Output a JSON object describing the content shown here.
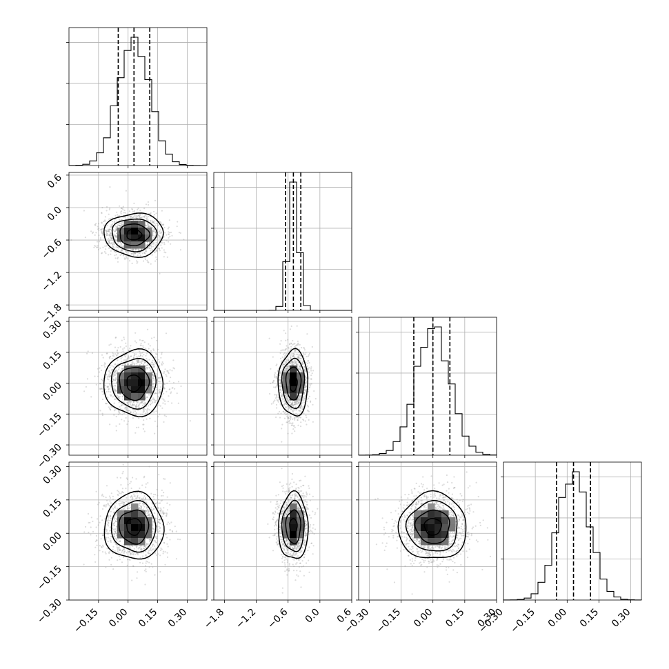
{
  "chart_data": {
    "type": "corner",
    "parameters": 4,
    "grid": true,
    "x_axes": [
      {
        "range": [
          -0.3,
          0.4
        ],
        "ticks": [
          -0.15,
          0.0,
          0.15,
          0.3
        ],
        "labels": [
          "−0.15",
          "0.00",
          "0.15",
          "0.30"
        ]
      },
      {
        "range": [
          -2.0,
          0.6
        ],
        "ticks": [
          -1.8,
          -1.2,
          -0.6,
          0.0,
          0.6
        ],
        "labels": [
          "−1.8",
          "−1.2",
          "−0.6",
          "0.0",
          "0.6"
        ]
      },
      {
        "range": [
          -0.35,
          0.3
        ],
        "ticks": [
          -0.3,
          -0.15,
          0.0,
          0.15,
          0.3
        ],
        "labels": [
          "−0.30",
          "−0.15",
          "0.00",
          "0.15",
          "0.30"
        ]
      },
      {
        "range": [
          -0.3,
          0.35
        ],
        "ticks": [
          -0.3,
          -0.15,
          0.0,
          0.15,
          0.3
        ],
        "labels": [
          "−0.30",
          "−0.15",
          "0.00",
          "0.15",
          "0.30"
        ]
      }
    ],
    "y_axes": [
      null,
      {
        "range": [
          -1.9,
          0.65
        ],
        "ticks": [
          0.6,
          0.0,
          -0.6,
          -1.2,
          -1.8
        ],
        "labels": [
          "0.6",
          "0.0",
          "−0.6",
          "−1.2",
          "−1.8"
        ]
      },
      {
        "range": [
          -0.35,
          0.32
        ],
        "ticks": [
          0.3,
          0.15,
          0.0,
          -0.15,
          -0.3
        ],
        "labels": [
          "0.30",
          "0.15",
          "0.00",
          "−0.15",
          "−0.30"
        ]
      },
      {
        "range": [
          -0.3,
          0.32
        ],
        "ticks": [
          0.3,
          0.15,
          0.0,
          -0.15,
          -0.3
        ],
        "labels": [
          "0.30",
          "0.15",
          "0.00",
          "−0.15",
          "−0.30"
        ]
      }
    ],
    "marginals": [
      {
        "param": 0,
        "mean": 0.03,
        "sd": 0.08,
        "quantiles": [
          -0.05,
          0.03,
          0.11
        ],
        "hist_max_frac": 0.93
      },
      {
        "param": 1,
        "mean": -0.5,
        "sd": 0.1,
        "quantiles": [
          -0.65,
          -0.5,
          -0.36
        ],
        "hist_max_frac": 0.93
      },
      {
        "param": 2,
        "mean": 0.0,
        "sd": 0.08,
        "quantiles": [
          -0.09,
          0.0,
          0.08
        ],
        "hist_max_frac": 0.93
      },
      {
        "param": 3,
        "mean": 0.03,
        "sd": 0.075,
        "quantiles": [
          -0.05,
          0.03,
          0.11
        ],
        "hist_max_frac": 0.93
      }
    ],
    "pairs": [
      {
        "row": 1,
        "col": 0,
        "cx": 0.03,
        "cy": -0.5,
        "sx": 0.075,
        "sy": 0.2
      },
      {
        "row": 2,
        "col": 0,
        "cx": 0.03,
        "cy": 0.0,
        "sx": 0.075,
        "sy": 0.08
      },
      {
        "row": 2,
        "col": 1,
        "cx": -0.5,
        "cy": 0.0,
        "sx": 0.14,
        "sy": 0.08
      },
      {
        "row": 3,
        "col": 0,
        "cx": 0.03,
        "cy": 0.03,
        "sx": 0.075,
        "sy": 0.075
      },
      {
        "row": 3,
        "col": 1,
        "cx": -0.5,
        "cy": 0.03,
        "sx": 0.14,
        "sy": 0.075
      },
      {
        "row": 3,
        "col": 2,
        "cx": 0.0,
        "cy": 0.03,
        "sx": 0.08,
        "sy": 0.075
      }
    ],
    "contour_levels_sigma": [
      0.5,
      1.0,
      1.5,
      2.0
    ],
    "colors": {
      "scatter": "#9a9a9a",
      "hist2d_dark": "#000000",
      "grid": "#b0b0b0"
    }
  }
}
